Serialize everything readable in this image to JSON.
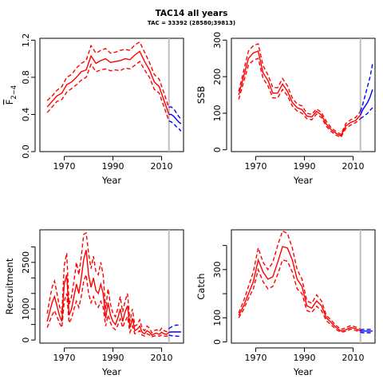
{
  "title": "TAC14 all years",
  "subtitle": "TAC = 33392 (28580;39813)",
  "colors": {
    "estimate": "#ff0000",
    "projection": "#0000ff",
    "marker": "#bebebe",
    "axis": "#000000"
  },
  "chart_data": [
    {
      "type": "line",
      "ylabel": "F̅2-4",
      "ylabel_main": "F",
      "ylabel_sub": "2−4",
      "xlabel": "Year",
      "xlim": [
        1960,
        2019
      ],
      "ylim": [
        0,
        1.22
      ],
      "xticks": [
        1970,
        1990,
        2010
      ],
      "yticks": [
        0.0,
        0.4,
        0.8,
        1.2
      ],
      "ytick_labels": [
        "0.0",
        "0.4",
        "0.8",
        "1.2"
      ],
      "marker_year": 2013,
      "x": [
        1963,
        1965,
        1967,
        1969,
        1971,
        1973,
        1975,
        1977,
        1979,
        1981,
        1983,
        1985,
        1987,
        1989,
        1991,
        1993,
        1995,
        1997,
        1999,
        2001,
        2003,
        2005,
        2007,
        2009,
        2011,
        2013
      ],
      "series": [
        {
          "values": [
            0.48,
            0.54,
            0.6,
            0.63,
            0.72,
            0.75,
            0.8,
            0.86,
            0.88,
            1.03,
            0.95,
            0.98,
            1.0,
            0.96,
            0.97,
            0.98,
            1.0,
            0.99,
            1.04,
            1.08,
            0.97,
            0.88,
            0.75,
            0.7,
            0.55,
            0.4
          ],
          "style": "solid"
        },
        {
          "values": [
            0.55,
            0.6,
            0.66,
            0.7,
            0.8,
            0.83,
            0.9,
            0.95,
            0.98,
            1.14,
            1.06,
            1.09,
            1.11,
            1.06,
            1.07,
            1.09,
            1.1,
            1.09,
            1.15,
            1.18,
            1.07,
            0.96,
            0.83,
            0.78,
            0.63,
            0.47
          ],
          "style": "dashed"
        },
        {
          "values": [
            0.42,
            0.48,
            0.54,
            0.56,
            0.64,
            0.68,
            0.72,
            0.77,
            0.8,
            0.94,
            0.86,
            0.88,
            0.89,
            0.87,
            0.88,
            0.87,
            0.9,
            0.89,
            0.93,
            0.97,
            0.88,
            0.8,
            0.67,
            0.63,
            0.48,
            0.33
          ],
          "style": "dashed"
        }
      ],
      "projection_x": [
        2013,
        2014,
        2015,
        2016,
        2017,
        2018
      ],
      "projection": [
        {
          "values": [
            0.4,
            0.4,
            0.38,
            0.35,
            0.32,
            0.3
          ],
          "style": "solid"
        },
        {
          "values": [
            0.48,
            0.48,
            0.46,
            0.42,
            0.38,
            0.35
          ],
          "style": "dashed"
        },
        {
          "values": [
            0.33,
            0.32,
            0.3,
            0.27,
            0.25,
            0.22
          ],
          "style": "dashed"
        }
      ]
    },
    {
      "type": "line",
      "ylabel": "SSB",
      "xlabel": "Year",
      "xlim": [
        1960,
        2019
      ],
      "ylim": [
        -5,
        305
      ],
      "xticks": [
        1970,
        1990,
        2010
      ],
      "yticks": [
        0,
        100,
        200,
        300
      ],
      "ytick_labels": [
        "0",
        "100",
        "200",
        "300"
      ],
      "marker_year": 2013,
      "x": [
        1963,
        1965,
        1967,
        1969,
        1971,
        1973,
        1975,
        1977,
        1979,
        1981,
        1983,
        1985,
        1987,
        1989,
        1991,
        1993,
        1995,
        1997,
        1999,
        2001,
        2003,
        2005,
        2007,
        2009,
        2011,
        2013
      ],
      "series": [
        {
          "values": [
            150,
            200,
            250,
            265,
            270,
            210,
            190,
            155,
            155,
            180,
            160,
            130,
            115,
            110,
            92,
            90,
            105,
            95,
            70,
            55,
            45,
            38,
            65,
            75,
            80,
            95
          ],
          "style": "solid"
        },
        {
          "values": [
            160,
            215,
            270,
            285,
            290,
            230,
            205,
            170,
            170,
            195,
            175,
            142,
            125,
            120,
            100,
            97,
            112,
            102,
            78,
            60,
            50,
            42,
            72,
            82,
            88,
            105
          ],
          "style": "dashed"
        },
        {
          "values": [
            138,
            185,
            232,
            245,
            250,
            195,
            175,
            142,
            142,
            165,
            148,
            120,
            106,
            100,
            85,
            82,
            98,
            88,
            64,
            50,
            40,
            34,
            58,
            68,
            74,
            85
          ],
          "style": "dashed"
        }
      ],
      "projection_x": [
        2013,
        2014,
        2015,
        2016,
        2017,
        2018
      ],
      "projection": [
        {
          "values": [
            95,
            110,
            120,
            130,
            145,
            165
          ],
          "style": "solid"
        },
        {
          "values": [
            105,
            125,
            150,
            175,
            200,
            235
          ],
          "style": "dashed"
        },
        {
          "values": [
            85,
            90,
            95,
            100,
            108,
            115
          ],
          "style": "dashed"
        }
      ]
    },
    {
      "type": "line",
      "ylabel": "Recruitment",
      "xlabel": "Year",
      "xlim": [
        1960,
        2019
      ],
      "ylim": [
        -100,
        3550
      ],
      "xticks": [
        1970,
        1990,
        2010
      ],
      "yticks": [
        0,
        500,
        1000,
        1500,
        2000,
        2500,
        3000
      ],
      "ytick_labels": [
        "0",
        "",
        "1000",
        "",
        "2000",
        "",
        "3000"
      ],
      "ytick_rotated_labels": {
        "0": "0",
        "1000": "1000",
        "2500": "2500"
      },
      "marker_year": 2013,
      "x": [
        1963,
        1964,
        1965,
        1966,
        1967,
        1968,
        1969,
        1970,
        1971,
        1972,
        1973,
        1974,
        1975,
        1976,
        1977,
        1978,
        1979,
        1980,
        1981,
        1982,
        1983,
        1984,
        1985,
        1986,
        1987,
        1988,
        1989,
        1990,
        1991,
        1992,
        1993,
        1994,
        1995,
        1996,
        1997,
        1998,
        1999,
        2000,
        2001,
        2002,
        2003,
        2004,
        2005,
        2006,
        2007,
        2008,
        2009,
        2010,
        2011,
        2012,
        2013
      ],
      "series": [
        {
          "values": [
            600,
            900,
            1200,
            1400,
            1100,
            800,
            600,
            1800,
            2100,
            800,
            1000,
            1400,
            1800,
            1500,
            2000,
            2600,
            2900,
            2100,
            1700,
            2000,
            1600,
            1500,
            1800,
            1500,
            700,
            1200,
            800,
            600,
            500,
            700,
            1000,
            600,
            900,
            1100,
            400,
            700,
            300,
            350,
            450,
            250,
            200,
            300,
            250,
            150,
            200,
            220,
            180,
            250,
            200,
            180,
            250
          ],
          "style": "solid"
        },
        {
          "values": [
            850,
            1300,
            1700,
            1900,
            1500,
            1100,
            850,
            2400,
            2800,
            1150,
            1400,
            1900,
            2500,
            2100,
            2700,
            3400,
            3450,
            2800,
            2300,
            2700,
            2200,
            2100,
            2500,
            2100,
            1000,
            1650,
            1150,
            850,
            750,
            1000,
            1400,
            900,
            1250,
            1500,
            600,
            1000,
            450,
            500,
            650,
            380,
            300,
            450,
            380,
            230,
            300,
            330,
            270,
            380,
            300,
            270,
            370
          ],
          "style": "dashed"
        },
        {
          "values": [
            400,
            600,
            800,
            950,
            750,
            550,
            400,
            1250,
            1500,
            550,
            700,
            1000,
            1250,
            1050,
            1400,
            1900,
            2100,
            1500,
            1200,
            1400,
            1150,
            1050,
            1250,
            1050,
            450,
            800,
            550,
            400,
            330,
            470,
            680,
            400,
            600,
            750,
            250,
            450,
            200,
            230,
            300,
            160,
            130,
            200,
            160,
            100,
            130,
            150,
            120,
            160,
            130,
            120,
            160
          ],
          "style": "dashed"
        }
      ],
      "projection_x": [
        2013,
        2014,
        2015,
        2016,
        2017,
        2018
      ],
      "projection": [
        {
          "values": [
            250,
            260,
            260,
            260,
            260,
            260
          ],
          "style": "solid"
        },
        {
          "values": [
            370,
            420,
            460,
            480,
            480,
            480
          ],
          "style": "dashed"
        },
        {
          "values": [
            160,
            140,
            130,
            125,
            120,
            120
          ],
          "style": "dashed"
        }
      ]
    },
    {
      "type": "line",
      "ylabel": "Catch",
      "xlabel": "Year",
      "xlim": [
        1960,
        2019
      ],
      "ylim": [
        -5,
        465
      ],
      "xticks": [
        1970,
        1990,
        2010
      ],
      "yticks": [
        0,
        100,
        200,
        300,
        400
      ],
      "ytick_labels": [
        "0",
        "100",
        "",
        "300",
        ""
      ],
      "marker_year": 2013,
      "x": [
        1963,
        1965,
        1967,
        1969,
        1971,
        1973,
        1975,
        1977,
        1979,
        1981,
        1983,
        1985,
        1987,
        1989,
        1991,
        1993,
        1995,
        1997,
        1999,
        2001,
        2003,
        2005,
        2007,
        2009,
        2011,
        2013
      ],
      "series": [
        {
          "values": [
            110,
            150,
            200,
            250,
            340,
            290,
            260,
            270,
            330,
            395,
            390,
            340,
            260,
            230,
            150,
            140,
            170,
            150,
            100,
            80,
            60,
            45,
            50,
            60,
            55,
            45
          ],
          "style": "solid"
        },
        {
          "values": [
            120,
            170,
            230,
            290,
            390,
            330,
            300,
            330,
            400,
            460,
            450,
            390,
            300,
            260,
            170,
            160,
            195,
            170,
            110,
            90,
            68,
            52,
            58,
            68,
            62,
            52
          ],
          "style": "dashed"
        },
        {
          "values": [
            100,
            135,
            180,
            220,
            300,
            250,
            220,
            230,
            280,
            340,
            335,
            290,
            220,
            200,
            130,
            122,
            148,
            130,
            88,
            70,
            52,
            40,
            44,
            53,
            48,
            40
          ],
          "style": "dashed"
        }
      ],
      "projection_x": [
        2013,
        2014,
        2015,
        2016,
        2017,
        2018
      ],
      "projection": [
        {
          "values": [
            45,
            45,
            45,
            45,
            45,
            45
          ],
          "style": "solid"
        },
        {
          "values": [
            50,
            52,
            52,
            52,
            52,
            52
          ],
          "style": "dashed"
        },
        {
          "values": [
            40,
            38,
            38,
            38,
            38,
            38
          ],
          "style": "dashed"
        }
      ]
    }
  ]
}
